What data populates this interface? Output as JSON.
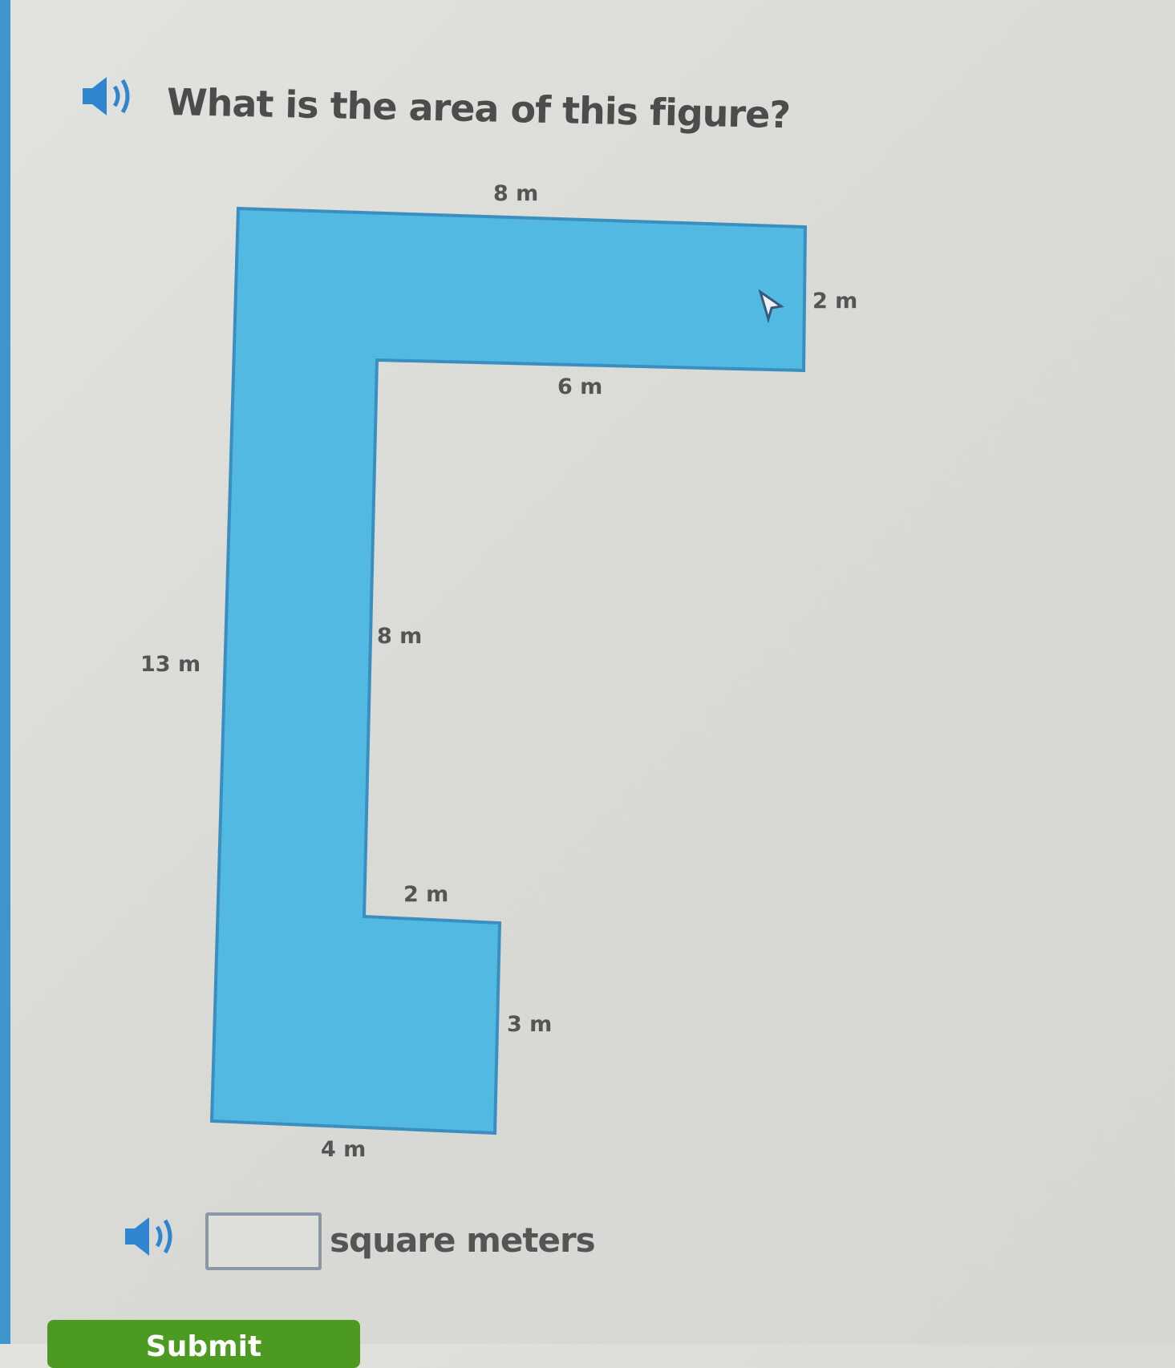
{
  "question": {
    "text": "What is the area of this figure?",
    "audio_icon": "speaker-icon"
  },
  "figure": {
    "fill_color": "#52b9e2",
    "stroke_color": "#3a8fc0",
    "labels": {
      "top": "8 m",
      "right_top": "2 m",
      "inner_top": "6 m",
      "inner_left": "8 m",
      "left": "13 m",
      "step_top": "2 m",
      "step_right": "3 m",
      "bottom": "4 m"
    }
  },
  "answer": {
    "value": "",
    "unit": "square meters",
    "audio_icon": "speaker-icon"
  },
  "submit": {
    "label": "Submit",
    "color": "#4d9a22"
  },
  "accent_color": "#3d95c9"
}
